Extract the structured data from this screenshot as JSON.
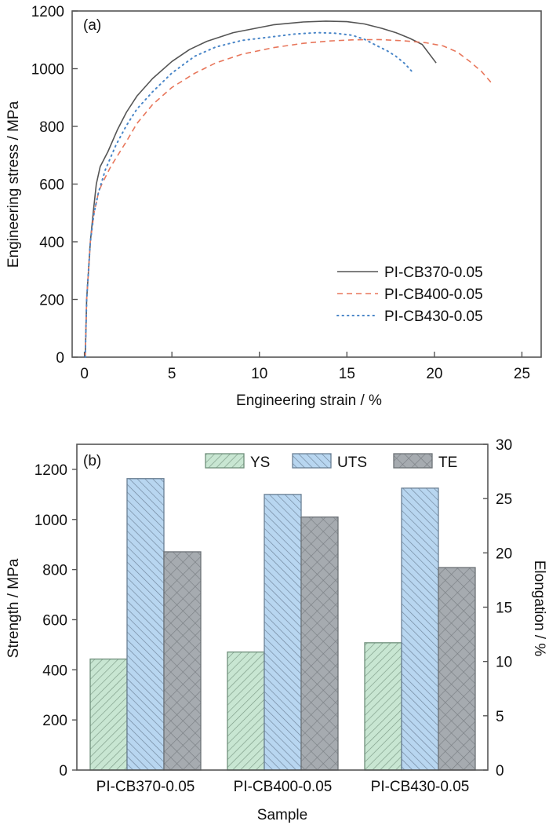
{
  "chart_data": [
    {
      "type": "line",
      "panel_label": "(a)",
      "xlabel": "Engineering strain / %",
      "ylabel": "Engineering stress / MPa",
      "xlim": [
        -0.7,
        26.1
      ],
      "ylim": [
        0,
        1200
      ],
      "xticks": [
        0,
        5,
        10,
        15,
        20,
        25
      ],
      "yticks": [
        0,
        200,
        400,
        600,
        800,
        1000,
        1200
      ],
      "grid": false,
      "legend_position": "bottom-right",
      "series": [
        {
          "name": "PI-CB370-0.05",
          "style": "solid",
          "color": "#555555",
          "x": [
            0.05,
            0.13,
            0.34,
            0.5,
            0.68,
            0.9,
            1.35,
            1.9,
            2.4,
            3.0,
            3.9,
            5.0,
            6.0,
            7.0,
            8.5,
            10.8,
            12.5,
            13.8,
            15.0,
            16.0,
            17.0,
            17.8,
            18.6,
            19.3,
            20.1
          ],
          "y": [
            0,
            200,
            400,
            500,
            600,
            660,
            713,
            790,
            849,
            905,
            966,
            1025,
            1066,
            1095,
            1125,
            1152,
            1162,
            1165,
            1163,
            1155,
            1140,
            1125,
            1105,
            1084,
            1020
          ]
        },
        {
          "name": "PI-CB400-0.05",
          "style": "dashed",
          "color": "#e8775c",
          "x": [
            0.05,
            0.13,
            0.34,
            0.55,
            0.8,
            1.0,
            1.5,
            2.4,
            3.0,
            3.9,
            5.0,
            6.3,
            7.5,
            9.0,
            10.8,
            12.5,
            14.0,
            15.3,
            16.8,
            18.2,
            19.5,
            20.5,
            21.3,
            22.0,
            22.7,
            23.3
          ],
          "y": [
            0,
            200,
            400,
            500,
            570,
            600,
            660,
            748,
            810,
            876,
            935,
            984,
            1020,
            1050,
            1073,
            1088,
            1096,
            1100,
            1101,
            1097,
            1090,
            1079,
            1058,
            1026,
            990,
            948
          ]
        },
        {
          "name": "PI-CB430-0.05",
          "style": "dotted",
          "color": "#4a86c8",
          "x": [
            0.05,
            0.13,
            0.34,
            0.55,
            0.8,
            1.2,
            1.8,
            2.4,
            3.0,
            3.9,
            5.0,
            6.3,
            7.5,
            9.0,
            10.8,
            12.0,
            13.3,
            14.3,
            15.3,
            16.0,
            16.7,
            17.3,
            17.8,
            18.3,
            18.75
          ],
          "y": [
            0,
            200,
            400,
            500,
            570,
            650,
            735,
            803,
            860,
            920,
            985,
            1043,
            1075,
            1098,
            1111,
            1120,
            1125,
            1123,
            1116,
            1102,
            1080,
            1062,
            1043,
            1018,
            988
          ]
        }
      ]
    },
    {
      "type": "bar",
      "panel_label": "(b)",
      "xlabel": "Sample",
      "ylabel": "Strength / MPa",
      "y2label": "Elongation / %",
      "categories": [
        "PI-CB370-0.05",
        "PI-CB400-0.05",
        "PI-CB430-0.05"
      ],
      "ylim": [
        0,
        1300
      ],
      "y2lim": [
        0,
        30
      ],
      "yticks": [
        0,
        200,
        400,
        600,
        800,
        1000,
        1200
      ],
      "y2ticks": [
        0,
        5,
        10,
        15,
        20,
        25,
        30
      ],
      "grid": false,
      "legend_position": "top",
      "series": [
        {
          "name": "YS",
          "axis": "left",
          "color": "#c8e6d2",
          "edge": "#6f8f7b",
          "hatch": "forward-diagonal",
          "values": [
            443,
            471,
            508
          ]
        },
        {
          "name": "UTS",
          "axis": "left",
          "color": "#b8d6f0",
          "edge": "#6a7f94",
          "hatch": "back-diagonal",
          "values": [
            1163,
            1100,
            1125
          ]
        },
        {
          "name": "TE",
          "axis": "right",
          "color": "#a6abb0",
          "edge": "#6d7277",
          "hatch": "crosshatch",
          "values": [
            20.1,
            23.3,
            18.65
          ]
        }
      ]
    }
  ]
}
